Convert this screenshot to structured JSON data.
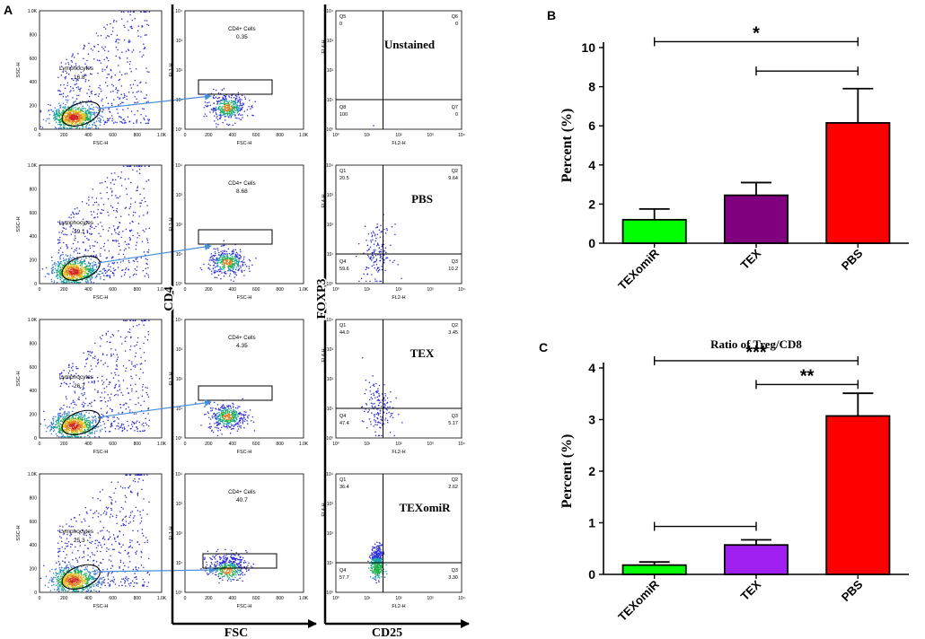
{
  "panel_labels": {
    "a": "A",
    "b": "B",
    "c": "C"
  },
  "axis_titles": {
    "cd4": "CD4",
    "foxp3": "FOXP3",
    "fsc": "FSC",
    "cd25": "CD25"
  },
  "rows": [
    {
      "lymphocytes": "16.8",
      "cd4_value": "0.35",
      "condition": "Unstained",
      "quadrants": {
        "ul_name": "Q5",
        "ul": "0",
        "ur_name": "Q6",
        "ur": "0",
        "ll_name": "Q8",
        "ll": "100",
        "lr_name": "Q7",
        "lr": "0"
      }
    },
    {
      "lymphocytes": "19.1",
      "cd4_value": "8.68",
      "condition": "PBS",
      "quadrants": {
        "ul_name": "Q1",
        "ul": "20.5",
        "ur_name": "Q2",
        "ur": "9.64",
        "ll_name": "Q4",
        "ll": "59.6",
        "lr_name": "Q3",
        "lr": "10.2"
      }
    },
    {
      "lymphocytes": "26.7",
      "cd4_value": "4.35",
      "condition": "TEX",
      "quadrants": {
        "ul_name": "Q1",
        "ul": "44.0",
        "ur_name": "Q2",
        "ur": "3.45",
        "ll_name": "Q4",
        "ll": "47.4",
        "lr_name": "Q3",
        "lr": "5.17"
      }
    },
    {
      "lymphocytes": "25.3",
      "cd4_value": "40.7",
      "condition": "TEXomiR",
      "quadrants": {
        "ul_name": "Q1",
        "ul": "36.4",
        "ur_name": "Q2",
        "ur": "2.62",
        "ll_name": "Q4",
        "ll": "57.7",
        "lr_name": "Q3",
        "lr": "3.30"
      }
    }
  ],
  "flow_text": {
    "lymph_gate": "Lymphocytes",
    "cd4_gate": "CD4+ Cells",
    "ssc": "SSC-H",
    "fsc": "FSC-H",
    "fl1": "FL1-H",
    "fl2": "FL2-H",
    "fl4": "FL4-H",
    "lin_ticks": [
      "0",
      "200",
      "400",
      "600",
      "800",
      "1.0K"
    ],
    "log_ticks": [
      "10⁰",
      "10¹",
      "10²",
      "10³",
      "10⁴"
    ]
  },
  "chart_data": [
    {
      "id": "B",
      "type": "bar",
      "title": "",
      "categories": [
        "TEXomiR",
        "TEX",
        "PBS"
      ],
      "values": [
        1.2,
        2.45,
        6.15
      ],
      "errors": [
        0.55,
        0.65,
        1.75
      ],
      "colors": [
        "#00ff00",
        "#800080",
        "#ff0000"
      ],
      "ylabel": "Percent (%)",
      "xlabel": "",
      "ylim": [
        0,
        10
      ],
      "yticks": [
        0,
        2,
        4,
        6,
        8,
        10
      ],
      "significance": [
        {
          "from": 0,
          "to": 2,
          "y": 10.3,
          "label": "*"
        },
        {
          "from": 1,
          "to": 2,
          "y": 8.8,
          "label": ""
        }
      ]
    },
    {
      "id": "C",
      "type": "bar",
      "title": "Ratio of Treg/CD8",
      "categories": [
        "TEXomiR",
        "TEX",
        "PBS"
      ],
      "values": [
        0.18,
        0.57,
        3.07
      ],
      "errors": [
        0.06,
        0.1,
        0.44
      ],
      "colors": [
        "#00ff00",
        "#a020f0",
        "#ff0000"
      ],
      "ylabel": "Percent (%)",
      "xlabel": "",
      "ylim": [
        0,
        4
      ],
      "yticks": [
        0,
        1,
        2,
        3,
        4
      ],
      "significance": [
        {
          "from": 0,
          "to": 2,
          "y": 4.14,
          "label": "***"
        },
        {
          "from": 1,
          "to": 2,
          "y": 3.68,
          "label": "**"
        },
        {
          "from": 0,
          "to": 1,
          "y": 0.93,
          "label": ""
        }
      ]
    }
  ]
}
